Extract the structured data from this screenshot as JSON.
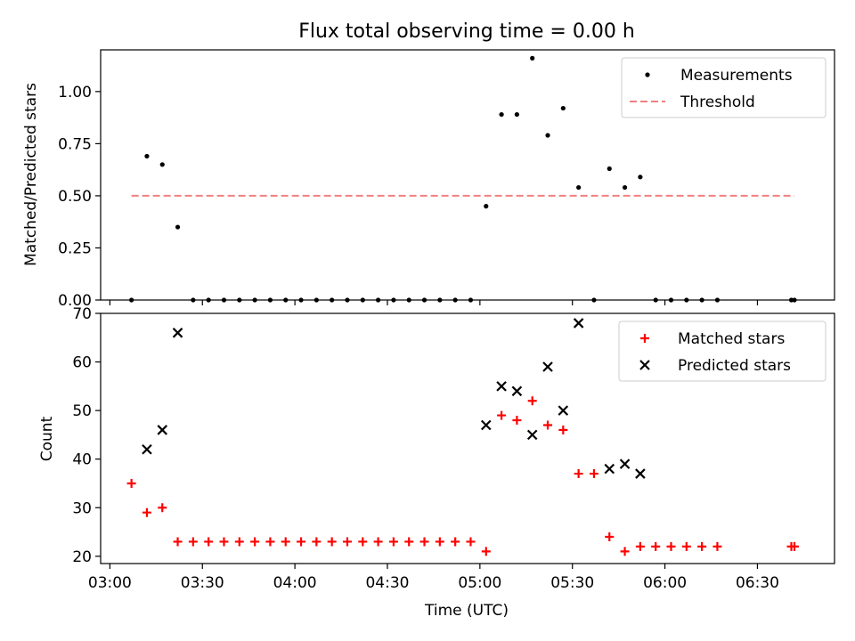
{
  "chart_data": [
    {
      "type": "scatter",
      "title": "Flux total observing time = 0.00 h",
      "xlabel": "",
      "ylabel": "Matched/Predicted stars",
      "xlim_minutes_after_0300": [
        -3,
        235
      ],
      "ylim": [
        0,
        1.2
      ],
      "yticks": [
        "0.00",
        "0.25",
        "0.50",
        "0.75",
        "1.00"
      ],
      "grid": false,
      "legend_position": "upper right",
      "series": [
        {
          "name": "Measurements",
          "style": "dot",
          "color": "#000000",
          "points": [
            [
              "03:07",
              0
            ],
            [
              "03:12",
              0.69
            ],
            [
              "03:17",
              0.65
            ],
            [
              "03:22",
              0.35
            ],
            [
              "03:27",
              0
            ],
            [
              "03:32",
              0
            ],
            [
              "03:37",
              0
            ],
            [
              "03:42",
              0
            ],
            [
              "03:47",
              0
            ],
            [
              "03:52",
              0
            ],
            [
              "03:57",
              0
            ],
            [
              "04:02",
              0
            ],
            [
              "04:07",
              0
            ],
            [
              "04:12",
              0
            ],
            [
              "04:17",
              0
            ],
            [
              "04:22",
              0
            ],
            [
              "04:27",
              0
            ],
            [
              "04:32",
              0
            ],
            [
              "04:37",
              0
            ],
            [
              "04:42",
              0
            ],
            [
              "04:47",
              0
            ],
            [
              "04:52",
              0
            ],
            [
              "04:57",
              0
            ],
            [
              "05:02",
              0.45
            ],
            [
              "05:07",
              0.89
            ],
            [
              "05:12",
              0.89
            ],
            [
              "05:17",
              1.16
            ],
            [
              "05:22",
              0.79
            ],
            [
              "05:27",
              0.92
            ],
            [
              "05:32",
              0.54
            ],
            [
              "05:37",
              0
            ],
            [
              "05:42",
              0.63
            ],
            [
              "05:47",
              0.54
            ],
            [
              "05:52",
              0.59
            ],
            [
              "05:57",
              0
            ],
            [
              "06:02",
              0
            ],
            [
              "06:07",
              0
            ],
            [
              "06:12",
              0
            ],
            [
              "06:17",
              0
            ],
            [
              "06:41",
              0
            ],
            [
              "06:42",
              0
            ]
          ]
        },
        {
          "name": "Threshold",
          "style": "dashed-line",
          "color": "#f08080",
          "points": [
            [
              "03:07",
              0.5
            ],
            [
              "06:42",
              0.5
            ]
          ]
        }
      ]
    },
    {
      "type": "scatter",
      "title": "",
      "xlabel": "Time (UTC)",
      "ylabel": "Count",
      "xlim_minutes_after_0300": [
        -3,
        235
      ],
      "xticks": [
        "03:00",
        "03:30",
        "04:00",
        "04:30",
        "05:00",
        "05:30",
        "06:00",
        "06:30"
      ],
      "ylim": [
        18.5,
        70
      ],
      "yticks": [
        "20",
        "30",
        "40",
        "50",
        "60",
        "70"
      ],
      "grid": false,
      "legend_position": "upper right",
      "series": [
        {
          "name": "Matched stars",
          "marker": "+",
          "color": "#ff0000",
          "points": [
            [
              "03:07",
              35
            ],
            [
              "03:12",
              29
            ],
            [
              "03:17",
              30
            ],
            [
              "03:22",
              23
            ],
            [
              "03:27",
              23
            ],
            [
              "03:32",
              23
            ],
            [
              "03:37",
              23
            ],
            [
              "03:42",
              23
            ],
            [
              "03:47",
              23
            ],
            [
              "03:52",
              23
            ],
            [
              "03:57",
              23
            ],
            [
              "04:02",
              23
            ],
            [
              "04:07",
              23
            ],
            [
              "04:12",
              23
            ],
            [
              "04:17",
              23
            ],
            [
              "04:22",
              23
            ],
            [
              "04:27",
              23
            ],
            [
              "04:32",
              23
            ],
            [
              "04:37",
              23
            ],
            [
              "04:42",
              23
            ],
            [
              "04:47",
              23
            ],
            [
              "04:52",
              23
            ],
            [
              "04:57",
              23
            ],
            [
              "05:02",
              21
            ],
            [
              "05:07",
              49
            ],
            [
              "05:12",
              48
            ],
            [
              "05:17",
              52
            ],
            [
              "05:22",
              47
            ],
            [
              "05:27",
              46
            ],
            [
              "05:32",
              37
            ],
            [
              "05:37",
              37
            ],
            [
              "05:42",
              24
            ],
            [
              "05:47",
              21
            ],
            [
              "05:52",
              22
            ],
            [
              "05:57",
              22
            ],
            [
              "06:02",
              22
            ],
            [
              "06:07",
              22
            ],
            [
              "06:12",
              22
            ],
            [
              "06:17",
              22
            ],
            [
              "06:41",
              22
            ],
            [
              "06:42",
              22
            ]
          ]
        },
        {
          "name": "Predicted stars",
          "marker": "x",
          "color": "#000000",
          "points": [
            [
              "03:12",
              42
            ],
            [
              "03:17",
              46
            ],
            [
              "03:22",
              66
            ],
            [
              "05:02",
              47
            ],
            [
              "05:07",
              55
            ],
            [
              "05:12",
              54
            ],
            [
              "05:17",
              45
            ],
            [
              "05:22",
              59
            ],
            [
              "05:27",
              50
            ],
            [
              "05:32",
              68
            ],
            [
              "05:42",
              38
            ],
            [
              "05:47",
              39
            ],
            [
              "05:52",
              37
            ]
          ]
        }
      ]
    }
  ]
}
